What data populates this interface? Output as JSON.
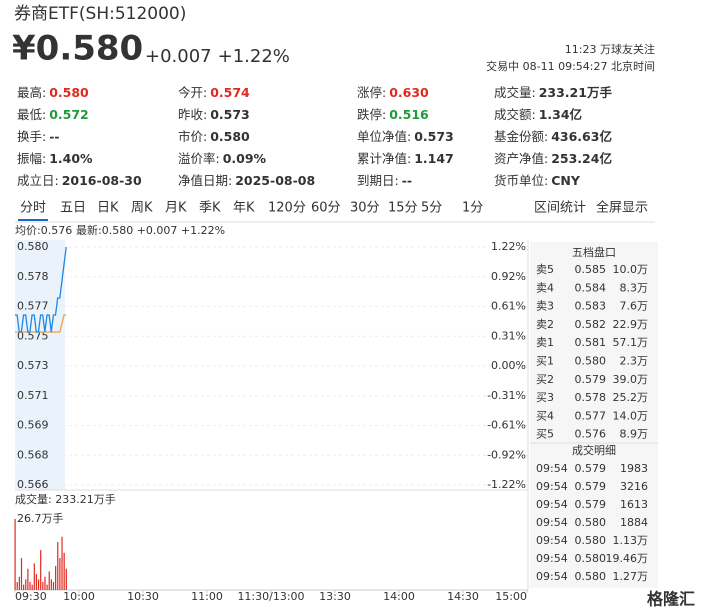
{
  "header": {
    "title": "券商ETF(SH:512000)",
    "price": "¥0.580",
    "change": "+0.007",
    "pct": "+1.22%",
    "followers": "11:23 万球友关注",
    "status": "交易中 08-11 09:54:27 北京时间"
  },
  "stats": {
    "rows": [
      [
        {
          "label": "最高:",
          "value": "0.580",
          "color": "#e0291f"
        },
        {
          "label": "今开:",
          "value": "0.574",
          "color": "#e0291f"
        },
        {
          "label": "涨停:",
          "value": "0.630",
          "color": "#e0291f"
        },
        {
          "label": "成交量:",
          "value": "233.21万手",
          "color": "#333333"
        }
      ],
      [
        {
          "label": "最低:",
          "value": "0.572",
          "color": "#1f9a3a"
        },
        {
          "label": "昨收:",
          "value": "0.573",
          "color": "#333333"
        },
        {
          "label": "跌停:",
          "value": "0.516",
          "color": "#1f9a3a"
        },
        {
          "label": "成交额:",
          "value": "1.34亿",
          "color": "#333333"
        }
      ],
      [
        {
          "label": "换手:",
          "value": "--",
          "color": "#333333"
        },
        {
          "label": "市价:",
          "value": "0.580",
          "color": "#333333"
        },
        {
          "label": "单位净值:",
          "value": "0.573",
          "color": "#333333"
        },
        {
          "label": "基金份额:",
          "value": "436.63亿",
          "color": "#333333"
        }
      ],
      [
        {
          "label": "振幅:",
          "value": "1.40%",
          "color": "#333333"
        },
        {
          "label": "溢价率:",
          "value": "0.09%",
          "color": "#333333"
        },
        {
          "label": "累计净值:",
          "value": "1.147",
          "color": "#333333"
        },
        {
          "label": "资产净值:",
          "value": "253.24亿",
          "color": "#333333"
        }
      ],
      [
        {
          "label": "成立日:",
          "value": "2016-08-30",
          "color": "#333333"
        },
        {
          "label": "净值日期:",
          "value": "2025-08-08",
          "color": "#333333"
        },
        {
          "label": "到期日:",
          "value": "--",
          "color": "#333333"
        },
        {
          "label": "货币单位:",
          "value": "CNY",
          "color": "#333333"
        }
      ]
    ]
  },
  "tabs": [
    "分时",
    "五日",
    "日K",
    "周K",
    "月K",
    "季K",
    "年K",
    "120分",
    "60分",
    "30分",
    "15分",
    "5分",
    "1分"
  ],
  "links": [
    "区间统计",
    "全屏显示"
  ],
  "chart_data": {
    "type": "line",
    "legend": {
      "avg": "均价:0.576",
      "latest": "最新:0.580 +0.007 +1.22%"
    },
    "xticks": [
      "09:30",
      "10:00",
      "10:30",
      "11:00",
      "11:30/13:00",
      "13:30",
      "14:00",
      "14:30",
      "15:00"
    ],
    "x": [
      0,
      1,
      2,
      3,
      4,
      5,
      6,
      7,
      8,
      9,
      10,
      11,
      12,
      13,
      14,
      15,
      16,
      17,
      18,
      19,
      20,
      21,
      22,
      23,
      24
    ],
    "xlim": [
      0,
      240
    ],
    "series": [
      {
        "name": "最新",
        "color": "#1e88e5",
        "values": [
          0.576,
          0.576,
          0.575,
          0.575,
          0.576,
          0.576,
          0.575,
          0.575,
          0.576,
          0.576,
          0.575,
          0.575,
          0.576,
          0.576,
          0.575,
          0.576,
          0.576,
          0.575,
          0.576,
          0.576,
          0.577,
          0.577,
          0.578,
          0.579,
          0.58
        ]
      },
      {
        "name": "均价",
        "color": "#f0a040",
        "values": [
          0.575,
          0.575,
          0.575,
          0.575,
          0.575,
          0.575,
          0.575,
          0.575,
          0.575,
          0.575,
          0.575,
          0.575,
          0.575,
          0.575,
          0.575,
          0.575,
          0.575,
          0.575,
          0.575,
          0.575,
          0.575,
          0.575,
          0.5755,
          0.576,
          0.576
        ]
      }
    ],
    "ylim": [
      0.566,
      0.58
    ],
    "yticks": [
      {
        "value": 0.58,
        "label": "0.580"
      },
      {
        "value": 0.57825,
        "label": "0.578"
      },
      {
        "value": 0.5765,
        "label": "0.577"
      },
      {
        "value": 0.57475,
        "label": "0.575"
      },
      {
        "value": 0.573,
        "label": "0.573"
      },
      {
        "value": 0.57125,
        "label": "0.571"
      },
      {
        "value": 0.5695,
        "label": "0.569"
      },
      {
        "value": 0.56775,
        "label": "0.568"
      },
      {
        "value": 0.566,
        "label": "0.566"
      }
    ],
    "y2lim": [
      -1.22,
      1.22
    ],
    "y2ticks": [
      {
        "value": 1.22,
        "label": "1.22%"
      },
      {
        "value": 0.915,
        "label": "0.92%"
      },
      {
        "value": 0.61,
        "label": "0.61%"
      },
      {
        "value": 0.305,
        "label": "0.31%"
      },
      {
        "value": 0,
        "label": "0.00%"
      },
      {
        "value": -0.305,
        "label": "-0.31%"
      },
      {
        "value": -0.61,
        "label": "-0.61%"
      },
      {
        "value": -0.915,
        "label": "-0.92%"
      },
      {
        "value": -1.22,
        "label": "-1.22%"
      }
    ],
    "volume": {
      "label": "成交量: 233.21万手",
      "color": "#e0291f",
      "values": [
        26.7,
        3,
        5,
        12,
        2,
        4,
        8,
        3,
        2,
        10,
        6,
        4,
        15,
        3,
        5,
        2,
        7,
        4,
        3,
        9,
        18,
        12,
        20,
        14,
        8
      ],
      "ylim": [
        0,
        26.7
      ],
      "yticks": [
        {
          "value": 26.7,
          "label": "26.7万手"
        }
      ]
    }
  },
  "orderbook": {
    "title": "五档盘口",
    "rows": [
      [
        "卖5",
        "0.585",
        "10.0万"
      ],
      [
        "卖4",
        "0.584",
        "8.3万"
      ],
      [
        "卖3",
        "0.583",
        "7.6万"
      ],
      [
        "卖2",
        "0.582",
        "22.9万"
      ],
      [
        "卖1",
        "0.581",
        "57.1万"
      ],
      [
        "买1",
        "0.580",
        "2.3万"
      ],
      [
        "买2",
        "0.579",
        "39.0万"
      ],
      [
        "买3",
        "0.578",
        "25.2万"
      ],
      [
        "买4",
        "0.577",
        "14.0万"
      ],
      [
        "买5",
        "0.576",
        "8.9万"
      ]
    ]
  },
  "trades": {
    "title": "成交明细",
    "rows": [
      {
        "time": "09:54",
        "price": "0.579",
        "volume": "1983",
        "color": "#1f9a3a"
      },
      {
        "time": "09:54",
        "price": "0.579",
        "volume": "3216",
        "color": "#1f9a3a"
      },
      {
        "time": "09:54",
        "price": "0.579",
        "volume": "1613",
        "color": "#1f9a3a"
      },
      {
        "time": "09:54",
        "price": "0.580",
        "volume": "1884",
        "color": "#e0291f"
      },
      {
        "time": "09:54",
        "price": "0.580",
        "volume": "1.13万",
        "color": "#e0291f"
      },
      {
        "time": "09:54",
        "price": "0.580",
        "volume": "19.46万",
        "color": "#e0291f"
      },
      {
        "time": "09:54",
        "price": "0.580",
        "volume": "1.27万",
        "color": "#1f9a3a"
      }
    ]
  },
  "watermark": "格隆汇"
}
